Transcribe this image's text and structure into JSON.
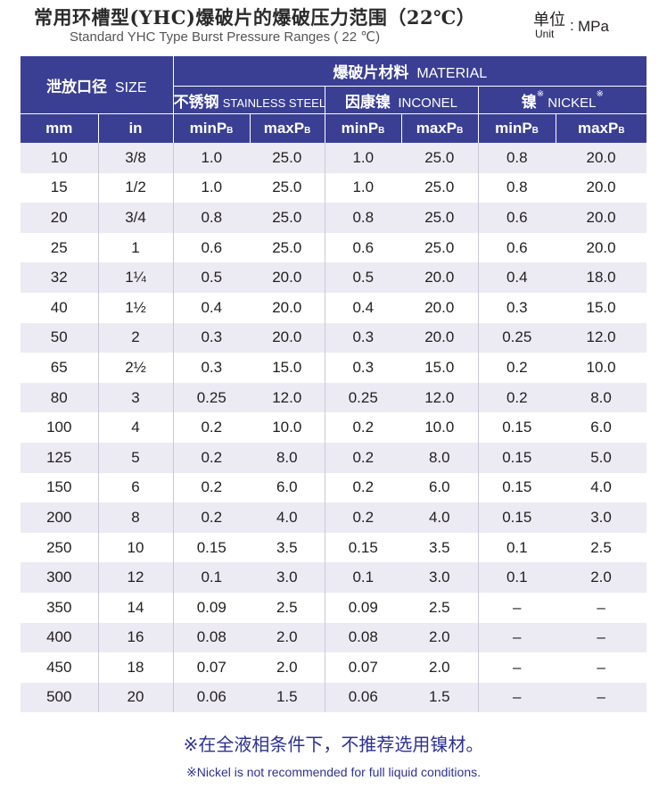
{
  "title": {
    "zh": "常用环槽型(YHC)爆破片的爆破压力范围（22℃）",
    "en": "Standard YHC Type Burst Pressure Ranges ( 22 ℃)"
  },
  "unit": {
    "zh": "单位",
    "en": "Unit",
    "colon": ":",
    "value": "MPa"
  },
  "headers": {
    "size_zh": "泄放口径",
    "size_en": "SIZE",
    "material_zh": "爆破片材料",
    "material_en": "MATERIAL",
    "materials": [
      {
        "zh": "不锈钢",
        "en": "STAINLESS STEEL",
        "mark": ""
      },
      {
        "zh": "因康镍",
        "en": "INCONEL",
        "mark": ""
      },
      {
        "zh": "镍",
        "en": "NICKEL",
        "mark": "※"
      }
    ],
    "mm": "mm",
    "in": "in",
    "min_label": "minP",
    "max_label": "maxP",
    "p_sub": "B"
  },
  "rows": [
    {
      "mm": "10",
      "in": "3/8",
      "ss_min": "1.0",
      "ss_max": "25.0",
      "inc_min": "1.0",
      "inc_max": "25.0",
      "ni_min": "0.8",
      "ni_max": "20.0"
    },
    {
      "mm": "15",
      "in": "1/2",
      "ss_min": "1.0",
      "ss_max": "25.0",
      "inc_min": "1.0",
      "inc_max": "25.0",
      "ni_min": "0.8",
      "ni_max": "20.0"
    },
    {
      "mm": "20",
      "in": "3/4",
      "ss_min": "0.8",
      "ss_max": "25.0",
      "inc_min": "0.8",
      "inc_max": "25.0",
      "ni_min": "0.6",
      "ni_max": "20.0"
    },
    {
      "mm": "25",
      "in": "1",
      "ss_min": "0.6",
      "ss_max": "25.0",
      "inc_min": "0.6",
      "inc_max": "25.0",
      "ni_min": "0.6",
      "ni_max": "20.0"
    },
    {
      "mm": "32",
      "in": "1¼",
      "ss_min": "0.5",
      "ss_max": "20.0",
      "inc_min": "0.5",
      "inc_max": "20.0",
      "ni_min": "0.4",
      "ni_max": "18.0"
    },
    {
      "mm": "40",
      "in": "1½",
      "ss_min": "0.4",
      "ss_max": "20.0",
      "inc_min": "0.4",
      "inc_max": "20.0",
      "ni_min": "0.3",
      "ni_max": "15.0"
    },
    {
      "mm": "50",
      "in": "2",
      "ss_min": "0.3",
      "ss_max": "20.0",
      "inc_min": "0.3",
      "inc_max": "20.0",
      "ni_min": "0.25",
      "ni_max": "12.0"
    },
    {
      "mm": "65",
      "in": "2½",
      "ss_min": "0.3",
      "ss_max": "15.0",
      "inc_min": "0.3",
      "inc_max": "15.0",
      "ni_min": "0.2",
      "ni_max": "10.0"
    },
    {
      "mm": "80",
      "in": "3",
      "ss_min": "0.25",
      "ss_max": "12.0",
      "inc_min": "0.25",
      "inc_max": "12.0",
      "ni_min": "0.2",
      "ni_max": "8.0"
    },
    {
      "mm": "100",
      "in": "4",
      "ss_min": "0.2",
      "ss_max": "10.0",
      "inc_min": "0.2",
      "inc_max": "10.0",
      "ni_min": "0.15",
      "ni_max": "6.0"
    },
    {
      "mm": "125",
      "in": "5",
      "ss_min": "0.2",
      "ss_max": "8.0",
      "inc_min": "0.2",
      "inc_max": "8.0",
      "ni_min": "0.15",
      "ni_max": "5.0"
    },
    {
      "mm": "150",
      "in": "6",
      "ss_min": "0.2",
      "ss_max": "6.0",
      "inc_min": "0.2",
      "inc_max": "6.0",
      "ni_min": "0.15",
      "ni_max": "4.0"
    },
    {
      "mm": "200",
      "in": "8",
      "ss_min": "0.2",
      "ss_max": "4.0",
      "inc_min": "0.2",
      "inc_max": "4.0",
      "ni_min": "0.15",
      "ni_max": "3.0"
    },
    {
      "mm": "250",
      "in": "10",
      "ss_min": "0.15",
      "ss_max": "3.5",
      "inc_min": "0.15",
      "inc_max": "3.5",
      "ni_min": "0.1",
      "ni_max": "2.5"
    },
    {
      "mm": "300",
      "in": "12",
      "ss_min": "0.1",
      "ss_max": "3.0",
      "inc_min": "0.1",
      "inc_max": "3.0",
      "ni_min": "0.1",
      "ni_max": "2.0"
    },
    {
      "mm": "350",
      "in": "14",
      "ss_min": "0.09",
      "ss_max": "2.5",
      "inc_min": "0.09",
      "inc_max": "2.5",
      "ni_min": "–",
      "ni_max": "–"
    },
    {
      "mm": "400",
      "in": "16",
      "ss_min": "0.08",
      "ss_max": "2.0",
      "inc_min": "0.08",
      "inc_max": "2.0",
      "ni_min": "–",
      "ni_max": "–"
    },
    {
      "mm": "450",
      "in": "18",
      "ss_min": "0.07",
      "ss_max": "2.0",
      "inc_min": "0.07",
      "inc_max": "2.0",
      "ni_min": "–",
      "ni_max": "–"
    },
    {
      "mm": "500",
      "in": "20",
      "ss_min": "0.06",
      "ss_max": "1.5",
      "inc_min": "0.06",
      "inc_max": "1.5",
      "ni_min": "–",
      "ni_max": "–"
    }
  ],
  "note": {
    "zh": "※在全液相条件下，不推荐选用镍材。",
    "en": "※Nickel is not recommended for full liquid conditions."
  },
  "colors": {
    "header_bg": "#3a3f94",
    "row_stripe": "#eceaf3",
    "note_text": "#2d3192"
  }
}
